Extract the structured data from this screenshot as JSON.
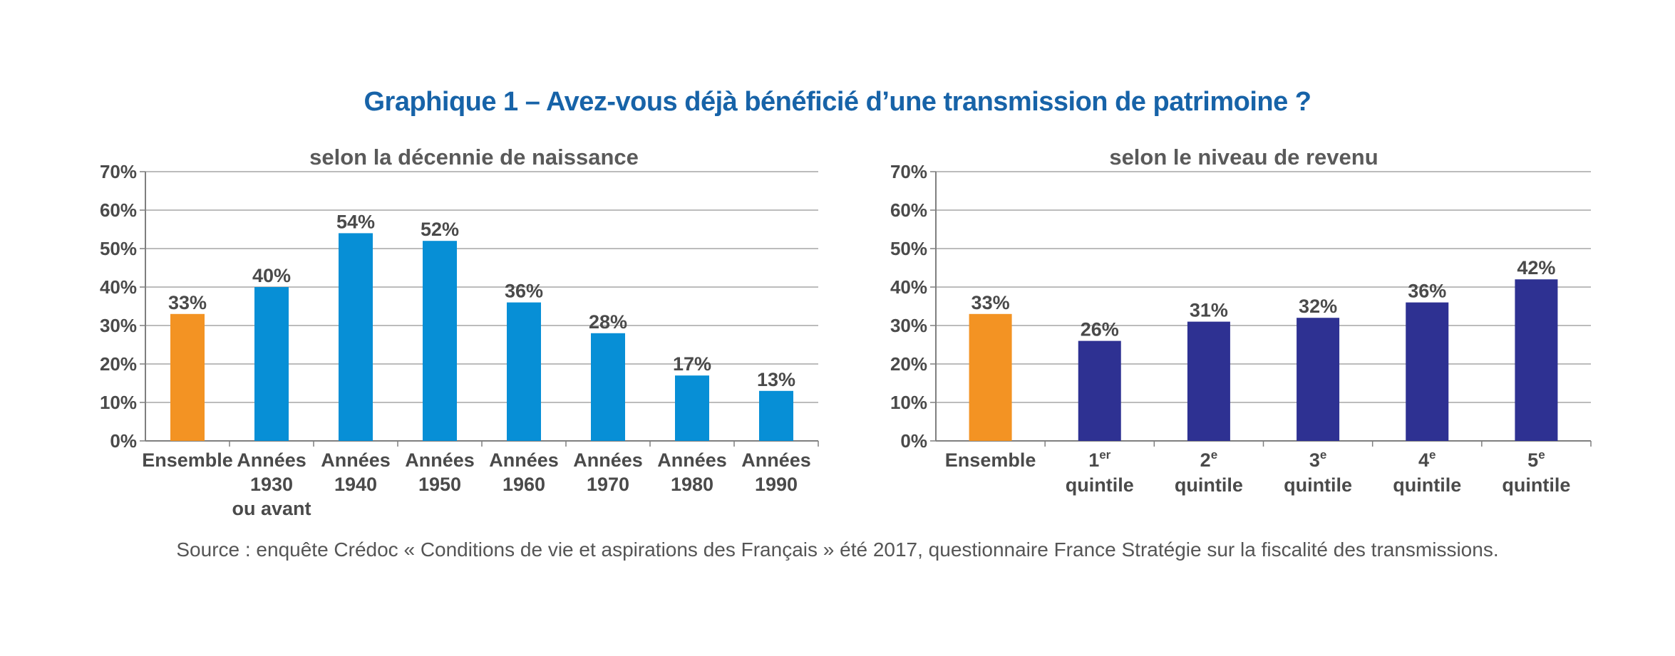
{
  "title": "Graphique 1 – Avez-vous déjà bénéficié d’une transmission de patrimoine ?",
  "source": "Source : enquête Crédoc « Conditions de vie et aspirations des Français » été 2017, questionnaire France Stratégie sur la fiscalité des transmissions.",
  "colors": {
    "title": "#1763a8",
    "highlight": "#f39323",
    "left_bars": "#078fd6",
    "right_bars": "#2e3192"
  },
  "chart_data": [
    {
      "type": "bar",
      "title": "selon la décennie de naissance",
      "xlabel": "",
      "ylabel": "",
      "ylim": [
        0,
        70
      ],
      "yticks": [
        "0%",
        "10%",
        "20%",
        "30%",
        "40%",
        "50%",
        "60%",
        "70%"
      ],
      "categories": [
        [
          "Ensemble"
        ],
        [
          "Années",
          "1930",
          "ou avant"
        ],
        [
          "Années",
          "1940"
        ],
        [
          "Années",
          "1950"
        ],
        [
          "Années",
          "1960"
        ],
        [
          "Années",
          "1970"
        ],
        [
          "Années",
          "1980"
        ],
        [
          "Années",
          "1990"
        ]
      ],
      "values": [
        33,
        40,
        54,
        52,
        36,
        28,
        17,
        13
      ],
      "value_labels": [
        "33%",
        "40%",
        "54%",
        "52%",
        "36%",
        "28%",
        "17%",
        "13%"
      ],
      "highlight_index": 0,
      "grid": true
    },
    {
      "type": "bar",
      "title": "selon le niveau de revenu",
      "xlabel": "",
      "ylabel": "",
      "ylim": [
        0,
        70
      ],
      "yticks": [
        "0%",
        "10%",
        "20%",
        "30%",
        "40%",
        "50%",
        "60%",
        "70%"
      ],
      "categories": [
        [
          {
            "t": "Ensemble"
          }
        ],
        [
          {
            "t": "1",
            "sup": "er"
          },
          {
            "t": "quintile"
          }
        ],
        [
          {
            "t": "2",
            "sup": "e"
          },
          {
            "t": "quintile"
          }
        ],
        [
          {
            "t": "3",
            "sup": "e"
          },
          {
            "t": "quintile"
          }
        ],
        [
          {
            "t": "4",
            "sup": "e"
          },
          {
            "t": "quintile"
          }
        ],
        [
          {
            "t": "5",
            "sup": "e"
          },
          {
            "t": "quintile"
          }
        ]
      ],
      "values": [
        33,
        26,
        31,
        32,
        36,
        42
      ],
      "value_labels": [
        "33%",
        "26%",
        "31%",
        "32%",
        "36%",
        "42%"
      ],
      "highlight_index": 0,
      "grid": true
    }
  ]
}
